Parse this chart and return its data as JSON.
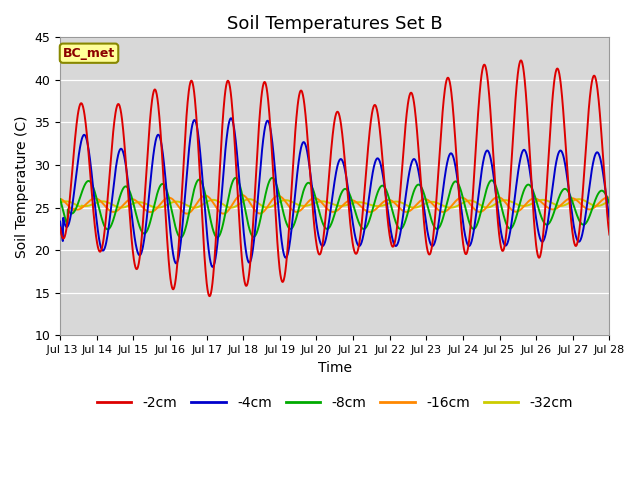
{
  "title": "Soil Temperatures Set B",
  "xlabel": "Time",
  "ylabel": "Soil Temperature (C)",
  "ylim": [
    10,
    45
  ],
  "annotation": "BC_met",
  "bg_color": "#d8d8d8",
  "fig_color": "#ffffff",
  "series": {
    "-2cm": {
      "color": "#dd0000",
      "lw": 1.4
    },
    "-4cm": {
      "color": "#0000cc",
      "lw": 1.4
    },
    "-8cm": {
      "color": "#00aa00",
      "lw": 1.4
    },
    "-16cm": {
      "color": "#ff8800",
      "lw": 1.4
    },
    "-32cm": {
      "color": "#cccc00",
      "lw": 1.4
    }
  },
  "xtick_labels": [
    " Jul 13",
    "Jul 14",
    "Jul 15",
    "Jul 16",
    "Jul 17",
    "Jul 18",
    "Jul 19",
    "Jul 20",
    "Jul 21",
    "Jul 22",
    "Jul 23",
    "Jul 24",
    "Jul 25",
    "Jul 26",
    "Jul 27",
    "Jul 28"
  ],
  "ytick_values": [
    10,
    15,
    20,
    25,
    30,
    35,
    40,
    45
  ],
  "legend_fontsize": 10,
  "title_fontsize": 13
}
